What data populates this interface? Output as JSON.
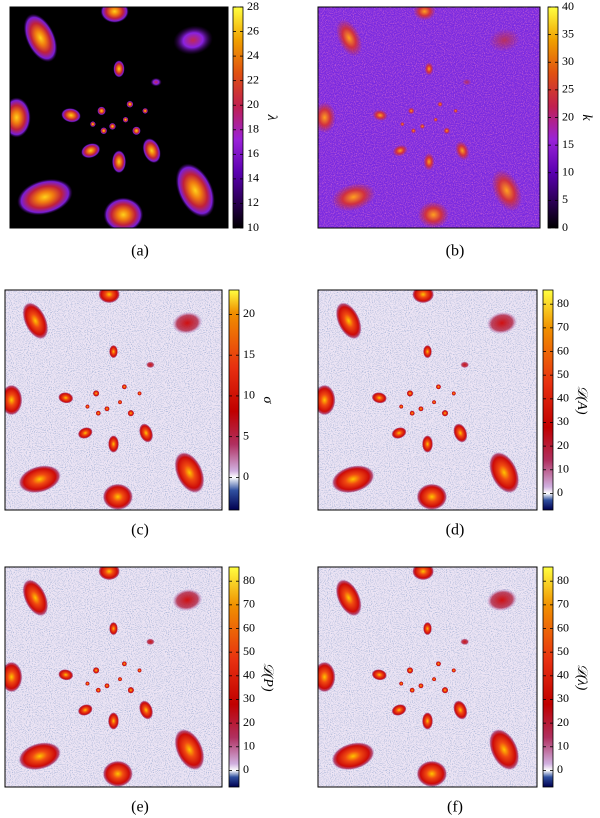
{
  "panels": [
    {
      "caption": "(a)",
      "colorbar": {
        "label": "λ",
        "lim": [
          10,
          28
        ],
        "ticks": [
          10,
          12,
          14,
          16,
          18,
          20,
          22,
          24,
          26,
          28
        ]
      }
    },
    {
      "caption": "(b)",
      "colorbar": {
        "label": "k",
        "lim": [
          0,
          40
        ],
        "ticks": [
          0,
          5,
          10,
          15,
          20,
          25,
          30,
          35,
          40
        ]
      }
    },
    {
      "caption": "(c)",
      "colorbar": {
        "label": "σ",
        "lim": [
          -4,
          23
        ],
        "ticks": [
          0,
          5,
          10,
          15,
          20
        ]
      }
    },
    {
      "caption": "(d)",
      "colorbar": {
        "label": "𝒟(A)",
        "lim": [
          -7,
          86
        ],
        "ticks": [
          0,
          10,
          20,
          30,
          40,
          50,
          60,
          70,
          80
        ]
      }
    },
    {
      "caption": "(e)",
      "colorbar": {
        "label": "𝒟(P)",
        "lim": [
          -7,
          86
        ],
        "ticks": [
          0,
          10,
          20,
          30,
          40,
          50,
          60,
          70,
          80
        ]
      }
    },
    {
      "caption": "(f)",
      "colorbar": {
        "label": "𝒟(λ)",
        "lim": [
          -7,
          86
        ],
        "ticks": [
          0,
          10,
          20,
          30,
          40,
          50,
          60,
          70,
          80
        ]
      }
    }
  ]
}
